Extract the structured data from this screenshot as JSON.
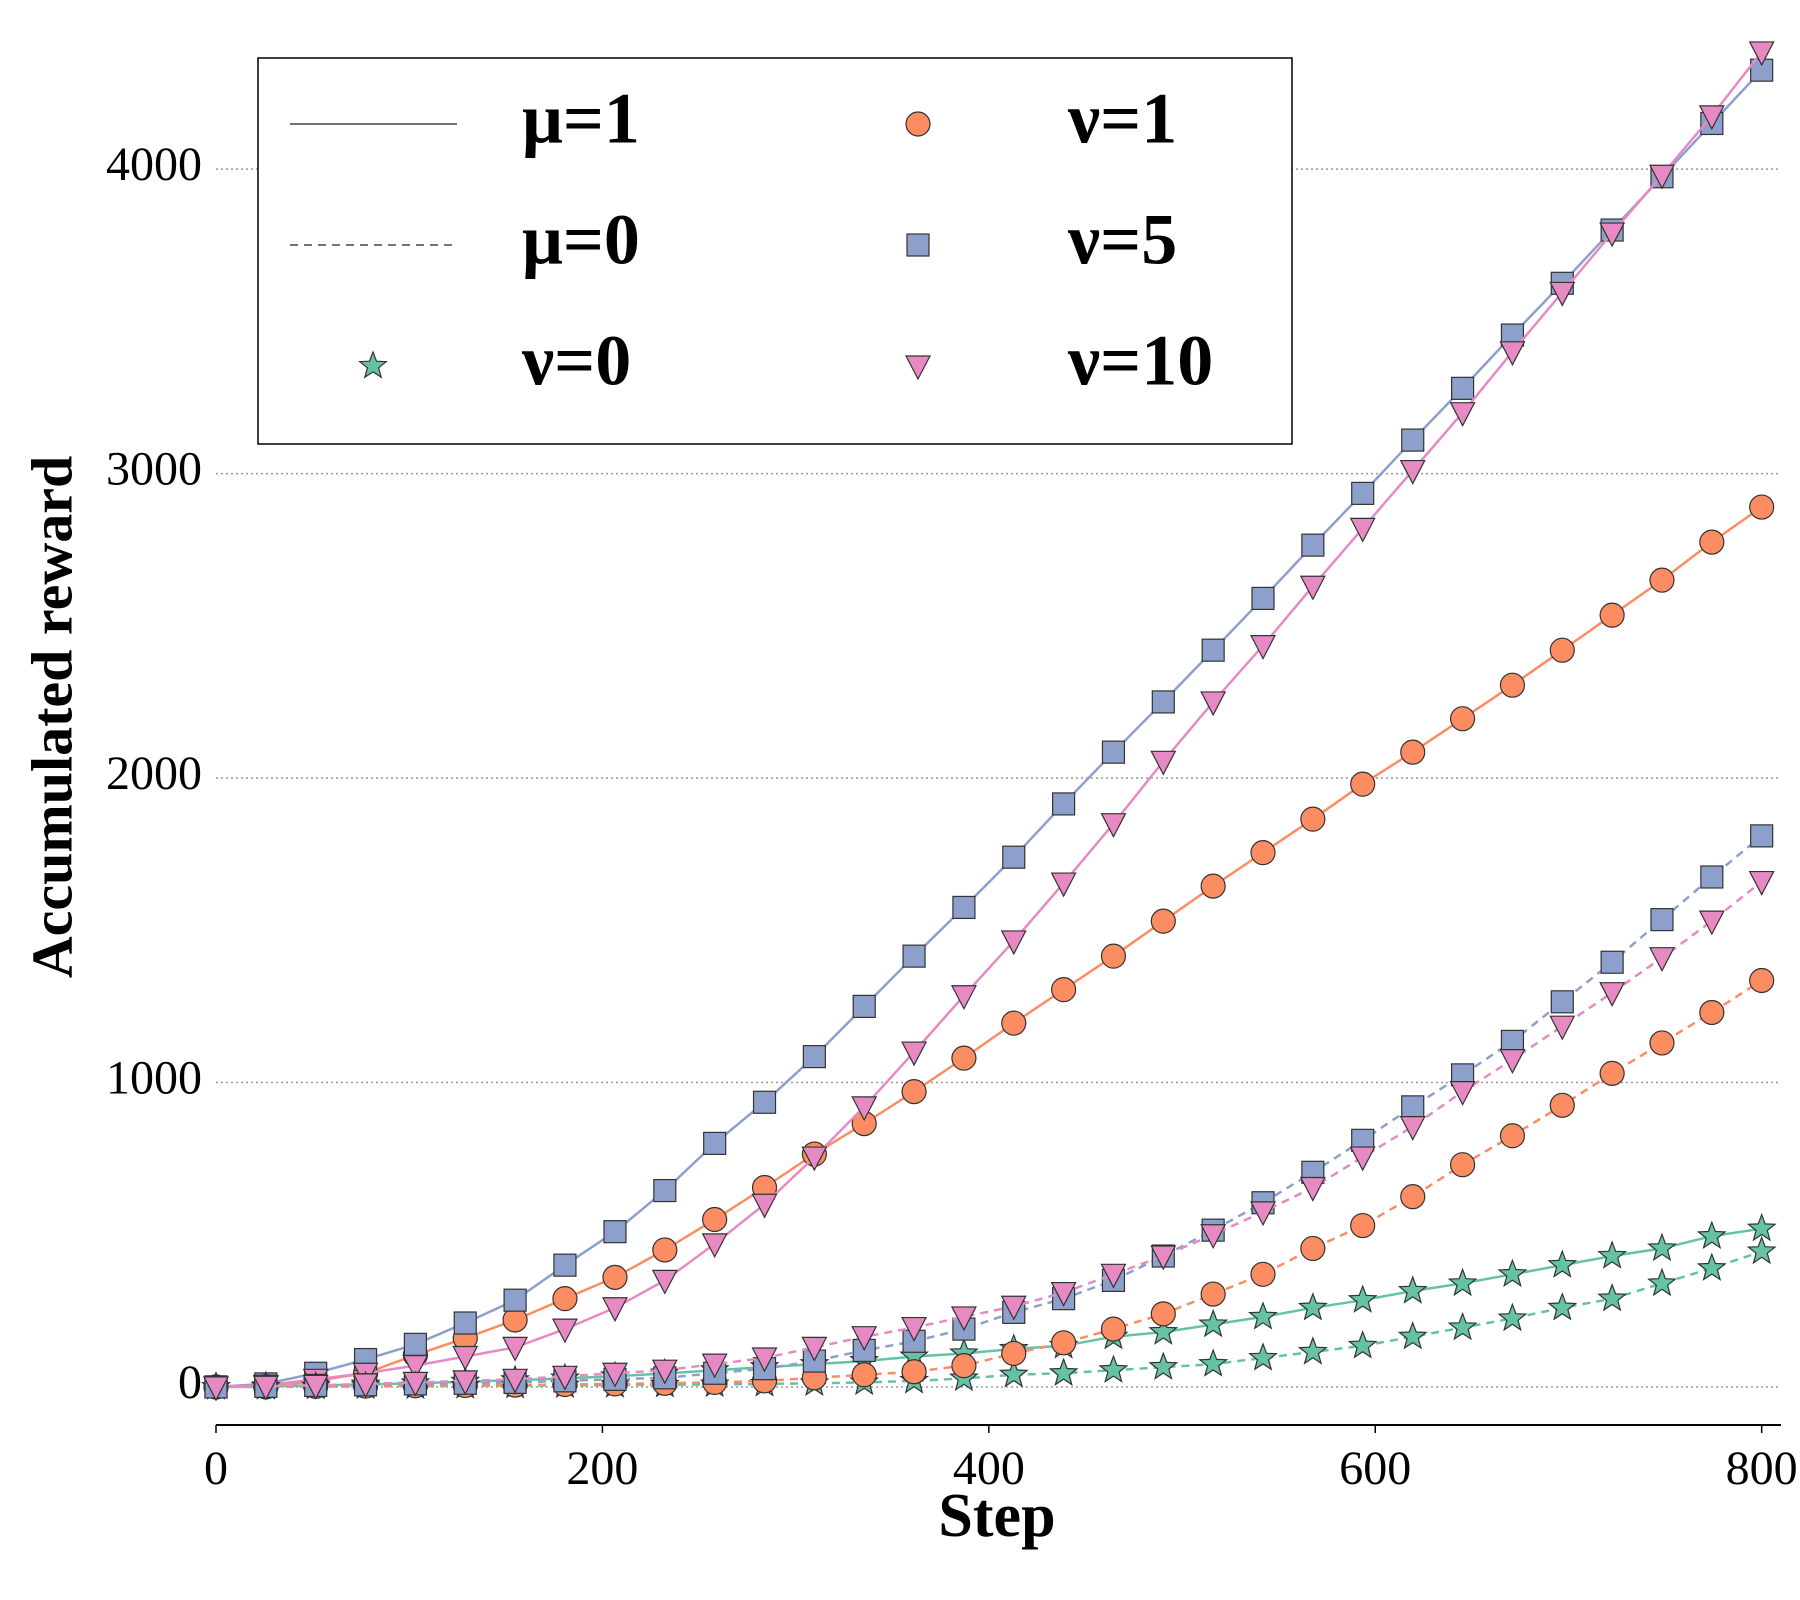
{
  "chart_data": {
    "type": "line",
    "xlabel": "Step",
    "ylabel": "Accumulated reward",
    "x": [
      0,
      25.8,
      51.6,
      77.4,
      103.2,
      129,
      154.8,
      180.6,
      206.5,
      232.3,
      258.1,
      283.9,
      309.7,
      335.5,
      361.3,
      387.1,
      412.9,
      438.7,
      464.5,
      490.3,
      516.1,
      541.9,
      567.7,
      593.5,
      619.4,
      645.2,
      671,
      696.8,
      722.6,
      748.4,
      774.2,
      800
    ],
    "xlim": [
      0,
      810
    ],
    "xticks": [
      0,
      200,
      400,
      600,
      800
    ],
    "ylim": [
      -125,
      4480
    ],
    "yticks": [
      0,
      1000,
      2000,
      3000,
      4000
    ],
    "grid": true,
    "legend_position": "upper left",
    "legend": [
      {
        "label": "μ=1",
        "linestyle": "solid"
      },
      {
        "label": "μ=0",
        "linestyle": "dashed"
      },
      {
        "label": "ν=0",
        "marker": "star",
        "color": "#66c2a5"
      },
      {
        "label": "ν=1",
        "marker": "circle",
        "color": "#fc8d62"
      },
      {
        "label": "ν=5",
        "marker": "square",
        "color": "#8da0cb"
      },
      {
        "label": "ν=10",
        "marker": "triangle-down",
        "color": "#e78ac3"
      }
    ],
    "series": [
      {
        "color": "#66c2a5",
        "marker": "star",
        "linestyle": "solid",
        "values": [
          0,
          2,
          5,
          8,
          12,
          17,
          22,
          28,
          35,
          44,
          55,
          65,
          75,
          85,
          100,
          110,
          125,
          135,
          165,
          180,
          205,
          230,
          260,
          285,
          315,
          340,
          370,
          400,
          430,
          455,
          495,
          520
        ]
      },
      {
        "color": "#fc8d62",
        "marker": "circle",
        "linestyle": "solid",
        "values": [
          0,
          0,
          20,
          45,
          105,
          160,
          220,
          290,
          360,
          450,
          550,
          655,
          765,
          865,
          970,
          1080,
          1195,
          1305,
          1415,
          1530,
          1645,
          1755,
          1865,
          1980,
          2085,
          2195,
          2305,
          2420,
          2535,
          2650,
          2775,
          2890
        ]
      },
      {
        "color": "#8da0cb",
        "marker": "square",
        "linestyle": "solid",
        "values": [
          0,
          10,
          45,
          90,
          140,
          210,
          285,
          400,
          510,
          645,
          800,
          935,
          1085,
          1250,
          1415,
          1575,
          1740,
          1915,
          2085,
          2250,
          2420,
          2590,
          2765,
          2935,
          3110,
          3280,
          3455,
          3625,
          3800,
          3975,
          4150,
          4325
        ]
      },
      {
        "color": "#e78ac3",
        "marker": "triangle-down",
        "linestyle": "solid",
        "values": [
          0,
          5,
          25,
          45,
          70,
          100,
          130,
          190,
          260,
          350,
          470,
          600,
          755,
          920,
          1100,
          1285,
          1465,
          1655,
          1850,
          2055,
          2250,
          2435,
          2630,
          2820,
          3010,
          3200,
          3400,
          3595,
          3790,
          3980,
          4175,
          4385
        ]
      },
      {
        "color": "#66c2a5",
        "marker": "star",
        "linestyle": "dashed",
        "values": [
          0,
          0,
          1,
          2,
          2,
          3,
          4,
          5,
          6,
          7,
          8,
          10,
          12,
          15,
          20,
          28,
          40,
          45,
          55,
          65,
          75,
          95,
          115,
          135,
          165,
          195,
          225,
          260,
          290,
          340,
          390,
          445
        ]
      },
      {
        "color": "#fc8d62",
        "marker": "circle",
        "linestyle": "dashed",
        "values": [
          0,
          1,
          2,
          3,
          4,
          5,
          6,
          8,
          10,
          12,
          15,
          20,
          30,
          40,
          50,
          70,
          110,
          145,
          190,
          240,
          305,
          370,
          455,
          530,
          625,
          730,
          825,
          925,
          1030,
          1130,
          1230,
          1335
        ]
      },
      {
        "color": "#8da0cb",
        "marker": "square",
        "linestyle": "dashed",
        "values": [
          0,
          2,
          5,
          7,
          10,
          12,
          15,
          20,
          25,
          30,
          45,
          60,
          85,
          120,
          150,
          190,
          245,
          290,
          350,
          430,
          515,
          605,
          705,
          810,
          920,
          1025,
          1135,
          1265,
          1395,
          1535,
          1675,
          1810
        ]
      },
      {
        "color": "#e78ac3",
        "marker": "triangle-down",
        "linestyle": "dashed",
        "values": [
          0,
          2,
          5,
          10,
          15,
          20,
          25,
          35,
          45,
          55,
          75,
          95,
          130,
          165,
          195,
          230,
          265,
          310,
          370,
          430,
          500,
          575,
          655,
          755,
          855,
          970,
          1075,
          1185,
          1295,
          1410,
          1530,
          1660
        ]
      }
    ]
  }
}
